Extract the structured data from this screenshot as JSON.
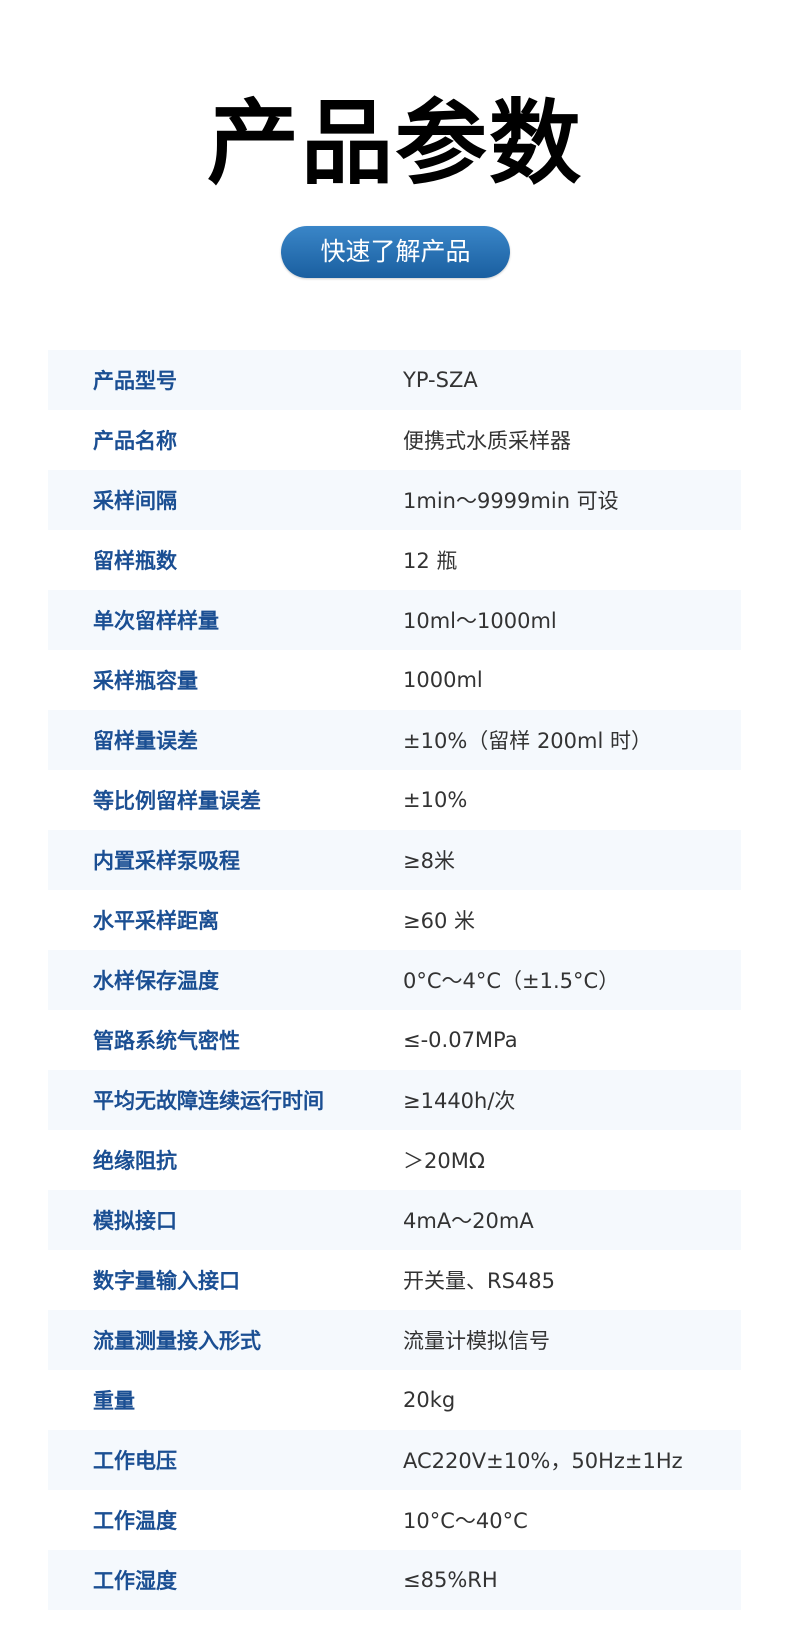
{
  "title": "产品参数",
  "button_label": "快速了解产品",
  "colors": {
    "label": "#1b4f93",
    "button": "#2a72b5",
    "row_alt": "#f5f9fd"
  },
  "rows": [
    {
      "label": "产品型号",
      "value": "YP-SZA"
    },
    {
      "label": "产品名称",
      "value": "便携式水质采样器"
    },
    {
      "label": "采样间隔",
      "value": "1min～9999min 可设"
    },
    {
      "label": "留样瓶数",
      "value": "12 瓶"
    },
    {
      "label": "单次留样样量",
      "value": "10ml～1000ml"
    },
    {
      "label": "采样瓶容量",
      "value": "1000ml"
    },
    {
      "label": "留样量误差",
      "value": "±10%（留样 200ml 时）"
    },
    {
      "label": "等比例留样量误差",
      "value": "±10%"
    },
    {
      "label": "内置采样泵吸程",
      "value": "≥8米"
    },
    {
      "label": "水平采样距离",
      "value": "≥60 米"
    },
    {
      "label": "水样保存温度",
      "value": "0°C～4°C（±1.5°C）"
    },
    {
      "label": "管路系统气密性",
      "value": "≤-0.07MPa"
    },
    {
      "label": "平均无故障连续运行时间",
      "value": "≥1440h/次"
    },
    {
      "label": "绝缘阻抗",
      "value": "＞20MΩ"
    },
    {
      "label": "模拟接口",
      "value": "4mA～20mA"
    },
    {
      "label": "数字量输入接口",
      "value": "开关量、RS485"
    },
    {
      "label": "流量测量接入形式",
      "value": "流量计模拟信号"
    },
    {
      "label": "重量",
      "value": "20kg"
    },
    {
      "label": "工作电压",
      "value": "AC220V±10%，50Hz±1Hz"
    },
    {
      "label": "工作温度",
      "value": "10°C～40°C"
    },
    {
      "label": "工作湿度",
      "value": "≤85%RH"
    }
  ]
}
